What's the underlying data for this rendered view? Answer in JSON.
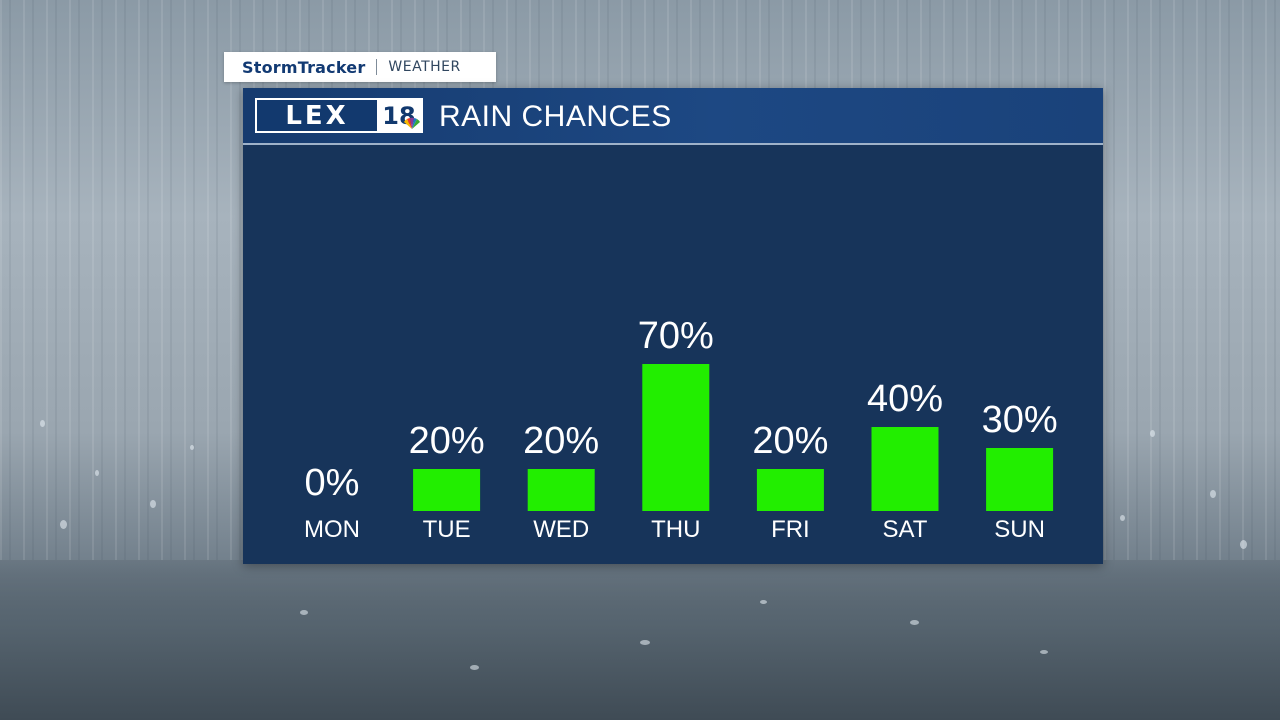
{
  "brand": {
    "tag_left": "StormTracker",
    "tag_right": "WEATHER",
    "logo_letters": "LEX",
    "logo_number": "18"
  },
  "colors": {
    "bar": "#22ee00",
    "panel": "#17345a",
    "header": "#1d4883",
    "text": "#ffffff"
  },
  "chart_data": {
    "type": "bar",
    "title": "RAIN CHANCES",
    "categories": [
      "MON",
      "TUE",
      "WED",
      "THU",
      "FRI",
      "SAT",
      "SUN"
    ],
    "values": [
      0,
      20,
      20,
      70,
      20,
      40,
      30
    ],
    "value_labels": [
      "0%",
      "20%",
      "20%",
      "70%",
      "20%",
      "40%",
      "30%"
    ],
    "unit": "%",
    "ylim": [
      0,
      100
    ],
    "grid": false,
    "legend": "none"
  }
}
